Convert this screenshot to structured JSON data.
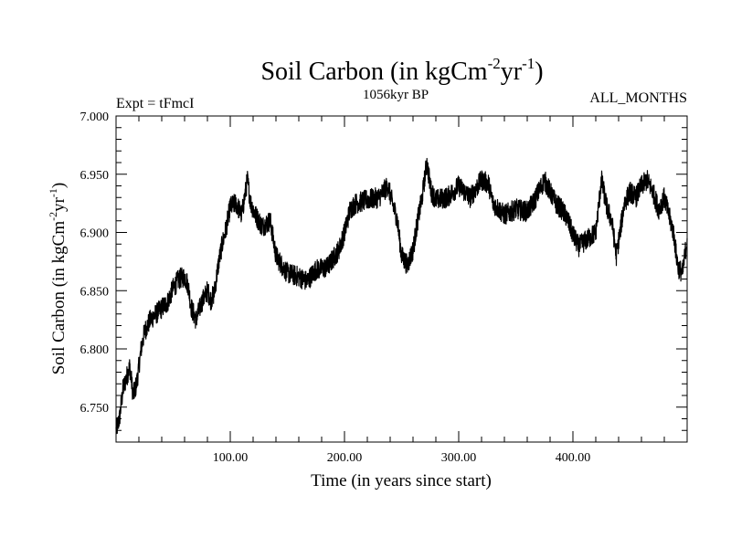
{
  "chart_data": {
    "type": "line",
    "title": "Soil Carbon (in kgCm",
    "title_sup1": "-2",
    "title_mid": "yr",
    "title_sup2": "-1",
    "title_end": ")",
    "subtitle_left": "Expt = tFmcI",
    "subtitle_center": "1056kyr BP",
    "subtitle_right": "ALL_MONTHS",
    "xlabel": "Time (in years since start)",
    "ylabel": "Soil Carbon (in kgCm",
    "ylabel_sup1": "-2",
    "ylabel_mid": "yr",
    "ylabel_sup2": "-1",
    "ylabel_end": ")",
    "xlim": [
      0,
      500
    ],
    "ylim": [
      6.72,
      7.0
    ],
    "xticks": [
      100,
      200,
      300,
      400
    ],
    "xtick_labels": [
      "100.00",
      "200.00",
      "300.00",
      "400.00"
    ],
    "yticks": [
      6.75,
      6.8,
      6.85,
      6.9,
      6.95,
      7.0
    ],
    "ytick_labels": [
      "6.750",
      "6.800",
      "6.850",
      "6.900",
      "6.950",
      "7.000"
    ],
    "grid": false,
    "line_color": "#000000",
    "series": [
      {
        "name": "soil_carbon",
        "x": [
          0,
          3,
          6,
          9,
          12,
          15,
          18,
          22,
          25,
          30,
          35,
          40,
          45,
          50,
          55,
          60,
          63,
          66,
          70,
          75,
          80,
          83,
          86,
          90,
          93,
          96,
          100,
          105,
          110,
          115,
          118,
          122,
          128,
          135,
          140,
          145,
          150,
          160,
          167,
          175,
          185,
          195,
          200,
          205,
          210,
          220,
          230,
          238,
          242,
          246,
          250,
          255,
          260,
          264,
          268,
          272,
          276,
          280,
          290,
          300,
          310,
          320,
          326,
          330,
          340,
          350,
          360,
          365,
          370,
          375,
          380,
          385,
          390,
          395,
          400,
          405,
          410,
          420,
          425,
          430,
          434,
          438,
          442,
          445,
          450,
          455,
          460,
          465,
          470,
          475,
          480,
          484,
          488,
          492,
          496,
          500
        ],
        "y": [
          6.73,
          6.74,
          6.765,
          6.775,
          6.785,
          6.76,
          6.77,
          6.8,
          6.815,
          6.825,
          6.83,
          6.835,
          6.84,
          6.852,
          6.86,
          6.862,
          6.855,
          6.835,
          6.825,
          6.84,
          6.85,
          6.842,
          6.848,
          6.875,
          6.89,
          6.902,
          6.922,
          6.925,
          6.915,
          6.945,
          6.925,
          6.915,
          6.905,
          6.91,
          6.88,
          6.872,
          6.865,
          6.862,
          6.858,
          6.868,
          6.87,
          6.885,
          6.9,
          6.92,
          6.925,
          6.928,
          6.93,
          6.94,
          6.925,
          6.912,
          6.88,
          6.872,
          6.885,
          6.91,
          6.93,
          6.96,
          6.935,
          6.928,
          6.93,
          6.94,
          6.93,
          6.945,
          6.942,
          6.925,
          6.915,
          6.92,
          6.918,
          6.925,
          6.935,
          6.945,
          6.935,
          6.925,
          6.92,
          6.912,
          6.898,
          6.888,
          6.892,
          6.9,
          6.945,
          6.92,
          6.91,
          6.88,
          6.905,
          6.925,
          6.935,
          6.93,
          6.94,
          6.945,
          6.935,
          6.92,
          6.93,
          6.915,
          6.9,
          6.87,
          6.865,
          6.895
        ]
      }
    ]
  }
}
